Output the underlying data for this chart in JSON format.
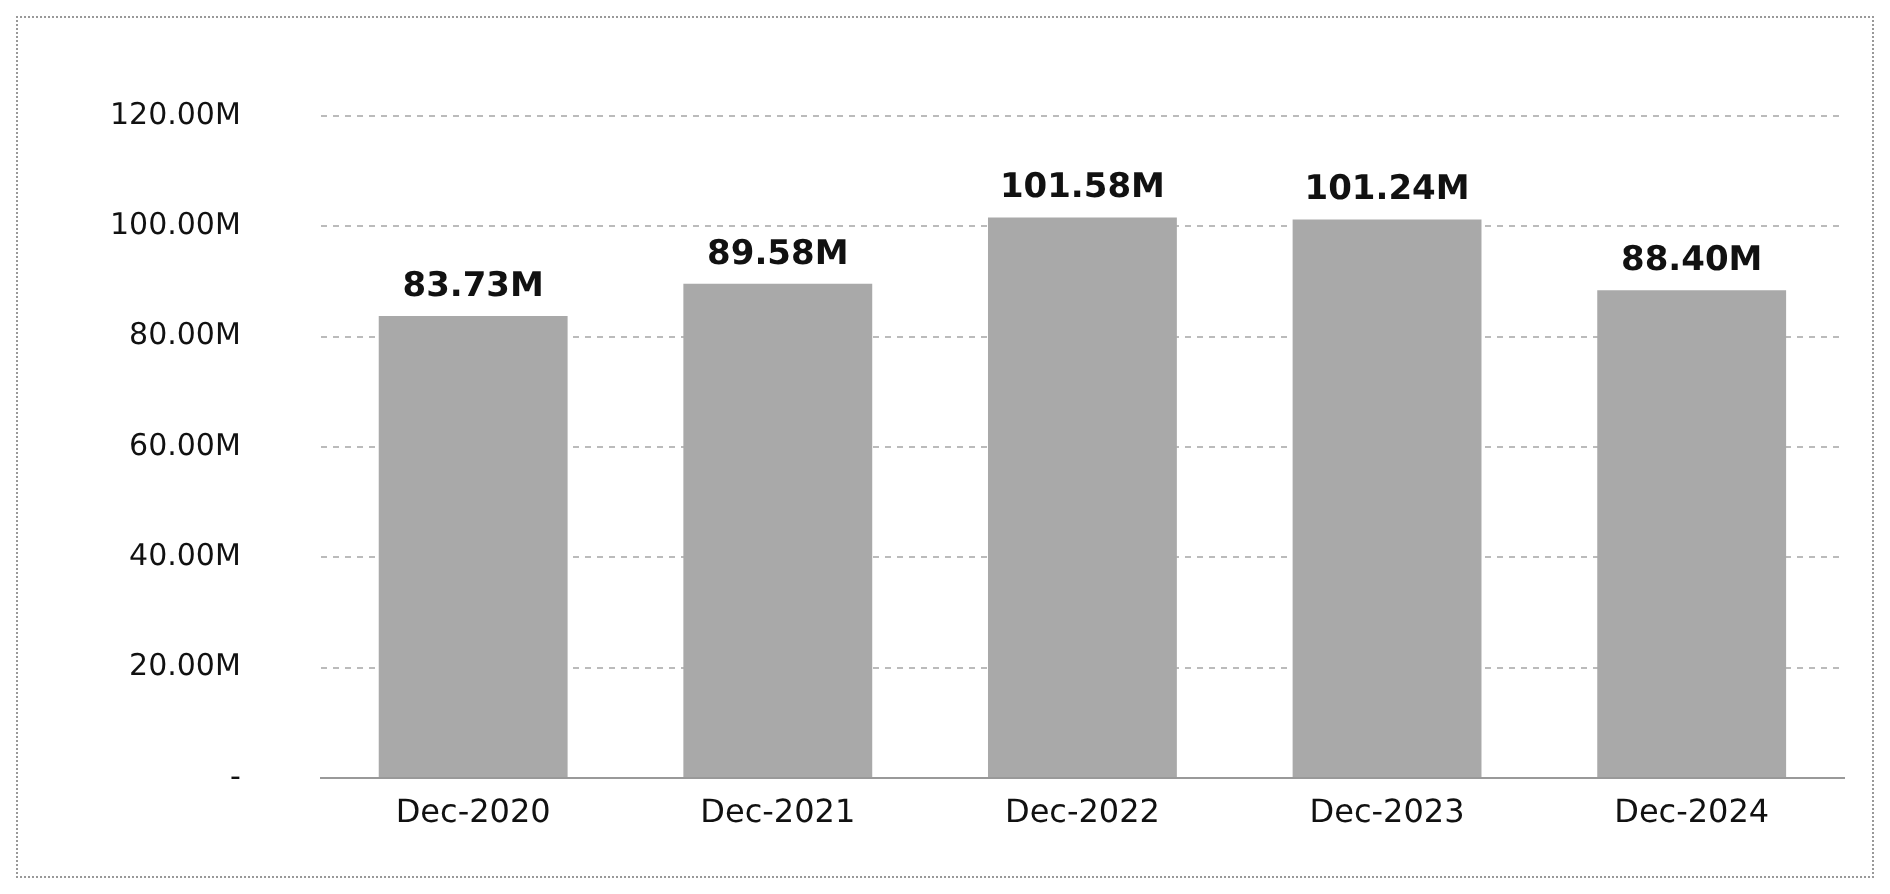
{
  "chart_data": {
    "type": "bar",
    "categories": [
      "Dec-2020",
      "Dec-2021",
      "Dec-2022",
      "Dec-2023",
      "Dec-2024"
    ],
    "values": [
      83.73,
      89.58,
      101.58,
      101.24,
      88.4
    ],
    "value_labels": [
      "83.73M",
      "89.58M",
      "101.58M",
      "101.24M",
      "88.40M"
    ],
    "color": "#a9a9a9",
    "ylim": [
      0,
      120
    ],
    "yticks": [
      {
        "value": 0,
        "label": "-"
      },
      {
        "value": 20,
        "label": "20.00M"
      },
      {
        "value": 40,
        "label": "40.00M"
      },
      {
        "value": 60,
        "label": "60.00M"
      },
      {
        "value": 80,
        "label": "80.00M"
      },
      {
        "value": 100,
        "label": "100.00M"
      },
      {
        "value": 120,
        "label": "120.00M"
      }
    ],
    "grid": "y"
  }
}
